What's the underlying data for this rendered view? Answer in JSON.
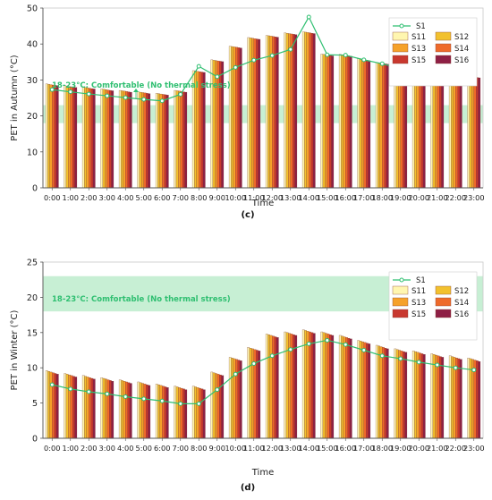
{
  "colors": {
    "S1": "#2fbf71",
    "S11": "#fff6b0",
    "S12": "#f2c12e",
    "S13": "#f5a12a",
    "S14": "#ee6a2a",
    "S15": "#c8382f",
    "S16": "#8e1f45",
    "comfort_band": "#bdeccd",
    "comfort_text": "#2fbf71"
  },
  "chart_data": [
    {
      "type": "bar",
      "panel_label": "(c)",
      "xlabel": "Time",
      "ylabel": "PET in Autumn  (°C)",
      "ylim": [
        0,
        50
      ],
      "yticks": [
        0,
        10,
        20,
        30,
        40,
        50
      ],
      "grid": false,
      "legend_position": "top-right",
      "comfort_band": {
        "range": [
          18,
          23
        ],
        "label": "18-23°C: Comfortable (No thermal stress)"
      },
      "categories": [
        "0:00",
        "1:00",
        "2:00",
        "3:00",
        "4:00",
        "5:00",
        "6:00",
        "7:00",
        "8:00",
        "9:00",
        "10:00",
        "11:00",
        "12:00",
        "13:00",
        "14:00",
        "15:00",
        "16:00",
        "17:00",
        "18:00",
        "19:00",
        "20:00",
        "21:00",
        "22:00",
        "23:00"
      ],
      "series": [
        {
          "name": "S1",
          "kind": "line",
          "values": [
            27.3,
            26.7,
            26.1,
            25.6,
            25.1,
            24.6,
            24.2,
            26.0,
            33.8,
            30.9,
            33.5,
            35.5,
            36.8,
            38.5,
            47.5,
            37.0,
            36.9,
            35.6,
            34.5,
            33.2,
            32.7,
            31.5,
            30.6,
            30.4
          ]
        },
        {
          "name": "S11",
          "kind": "bar",
          "values": [
            28.9,
            28.4,
            28.0,
            27.5,
            27.1,
            26.7,
            26.3,
            27.1,
            32.6,
            35.6,
            39.4,
            41.8,
            42.4,
            43.1,
            43.4,
            37.2,
            37.1,
            35.9,
            34.9,
            33.6,
            33.1,
            32.2,
            31.5,
            31.1
          ]
        },
        {
          "name": "S12",
          "kind": "bar",
          "values": [
            28.8,
            28.3,
            27.9,
            27.4,
            27.0,
            26.6,
            26.2,
            27.0,
            32.5,
            35.5,
            39.3,
            41.7,
            42.3,
            43.0,
            43.3,
            37.1,
            37.0,
            35.8,
            34.8,
            33.5,
            33.0,
            32.1,
            31.4,
            31.0
          ]
        },
        {
          "name": "S13",
          "kind": "bar",
          "values": [
            28.7,
            28.2,
            27.8,
            27.3,
            26.9,
            26.5,
            26.1,
            26.9,
            32.4,
            35.4,
            39.2,
            41.6,
            42.2,
            42.9,
            43.2,
            37.0,
            36.9,
            35.7,
            34.7,
            33.4,
            32.9,
            32.0,
            31.3,
            30.9
          ]
        },
        {
          "name": "S14",
          "kind": "bar",
          "values": [
            28.6,
            28.1,
            27.7,
            27.2,
            26.8,
            26.4,
            26.0,
            26.8,
            32.3,
            35.3,
            39.1,
            41.5,
            42.1,
            42.8,
            43.1,
            36.9,
            36.8,
            35.6,
            34.6,
            33.3,
            32.8,
            31.9,
            31.2,
            30.8
          ]
        },
        {
          "name": "S15",
          "kind": "bar",
          "values": [
            28.5,
            28.0,
            27.6,
            27.1,
            26.7,
            26.3,
            25.9,
            26.7,
            32.2,
            35.2,
            39.0,
            41.4,
            42.0,
            42.7,
            43.0,
            36.8,
            36.7,
            35.5,
            34.5,
            33.2,
            32.7,
            31.8,
            31.1,
            30.7
          ]
        },
        {
          "name": "S16",
          "kind": "bar",
          "values": [
            28.4,
            27.9,
            27.5,
            27.0,
            26.6,
            26.2,
            25.8,
            26.6,
            32.1,
            35.1,
            38.9,
            41.3,
            41.9,
            42.6,
            42.9,
            36.7,
            36.6,
            35.4,
            34.4,
            33.1,
            32.6,
            31.7,
            31.0,
            30.6
          ]
        }
      ]
    },
    {
      "type": "bar",
      "panel_label": "(d)",
      "xlabel": "Time",
      "ylabel": "PET in Winter  (°C)",
      "ylim": [
        0,
        25
      ],
      "yticks": [
        0,
        5,
        10,
        15,
        20,
        25
      ],
      "grid": false,
      "legend_position": "top-right",
      "comfort_band": {
        "range": [
          18,
          23
        ],
        "label": "18-23°C: Comfortable (No thermal stress)"
      },
      "categories": [
        "0:00",
        "1:00",
        "2:00",
        "3:00",
        "4:00",
        "5:00",
        "6:00",
        "7:00",
        "8:00",
        "9:00",
        "10:00",
        "11:00",
        "12:00",
        "13:00",
        "14:00",
        "15:00",
        "16:00",
        "17:00",
        "18:00",
        "19:00",
        "20:00",
        "21:00",
        "22:00",
        "23:00"
      ],
      "series": [
        {
          "name": "S1",
          "kind": "line",
          "values": [
            7.6,
            7.0,
            6.6,
            6.3,
            5.9,
            5.6,
            5.3,
            4.9,
            4.9,
            6.9,
            9.1,
            10.6,
            11.7,
            12.6,
            13.4,
            13.9,
            13.3,
            12.5,
            11.7,
            11.3,
            10.8,
            10.4,
            10.0,
            9.7
          ]
        },
        {
          "name": "S11",
          "kind": "bar",
          "values": [
            9.6,
            9.2,
            8.9,
            8.6,
            8.3,
            8.0,
            7.7,
            7.4,
            7.4,
            9.4,
            11.5,
            12.9,
            14.8,
            15.1,
            15.4,
            15.1,
            14.6,
            13.9,
            13.2,
            12.7,
            12.4,
            12.0,
            11.7,
            11.4
          ]
        },
        {
          "name": "S12",
          "kind": "bar",
          "values": [
            9.5,
            9.1,
            8.8,
            8.5,
            8.2,
            7.9,
            7.6,
            7.3,
            7.3,
            9.3,
            11.4,
            12.8,
            14.7,
            15.0,
            15.3,
            15.0,
            14.5,
            13.8,
            13.1,
            12.6,
            12.3,
            11.9,
            11.6,
            11.3
          ]
        },
        {
          "name": "S13",
          "kind": "bar",
          "values": [
            9.4,
            9.0,
            8.7,
            8.4,
            8.1,
            7.8,
            7.5,
            7.2,
            7.2,
            9.2,
            11.3,
            12.7,
            14.6,
            14.9,
            15.2,
            14.9,
            14.4,
            13.7,
            13.0,
            12.5,
            12.2,
            11.8,
            11.5,
            11.2
          ]
        },
        {
          "name": "S14",
          "kind": "bar",
          "values": [
            9.3,
            8.9,
            8.6,
            8.3,
            8.0,
            7.7,
            7.4,
            7.1,
            7.1,
            9.1,
            11.2,
            12.6,
            14.5,
            14.8,
            15.1,
            14.8,
            14.3,
            13.6,
            12.9,
            12.4,
            12.1,
            11.7,
            11.4,
            11.1
          ]
        },
        {
          "name": "S15",
          "kind": "bar",
          "values": [
            9.2,
            8.8,
            8.5,
            8.2,
            7.9,
            7.6,
            7.3,
            7.0,
            7.0,
            9.0,
            11.1,
            12.5,
            14.4,
            14.7,
            15.0,
            14.7,
            14.2,
            13.5,
            12.8,
            12.3,
            12.0,
            11.6,
            11.3,
            11.0
          ]
        },
        {
          "name": "S16",
          "kind": "bar",
          "values": [
            9.1,
            8.7,
            8.4,
            8.1,
            7.8,
            7.5,
            7.2,
            6.9,
            6.9,
            8.9,
            11.0,
            12.4,
            14.3,
            14.6,
            14.9,
            14.6,
            14.1,
            13.4,
            12.7,
            12.2,
            11.9,
            11.5,
            11.2,
            10.9
          ]
        }
      ]
    }
  ]
}
